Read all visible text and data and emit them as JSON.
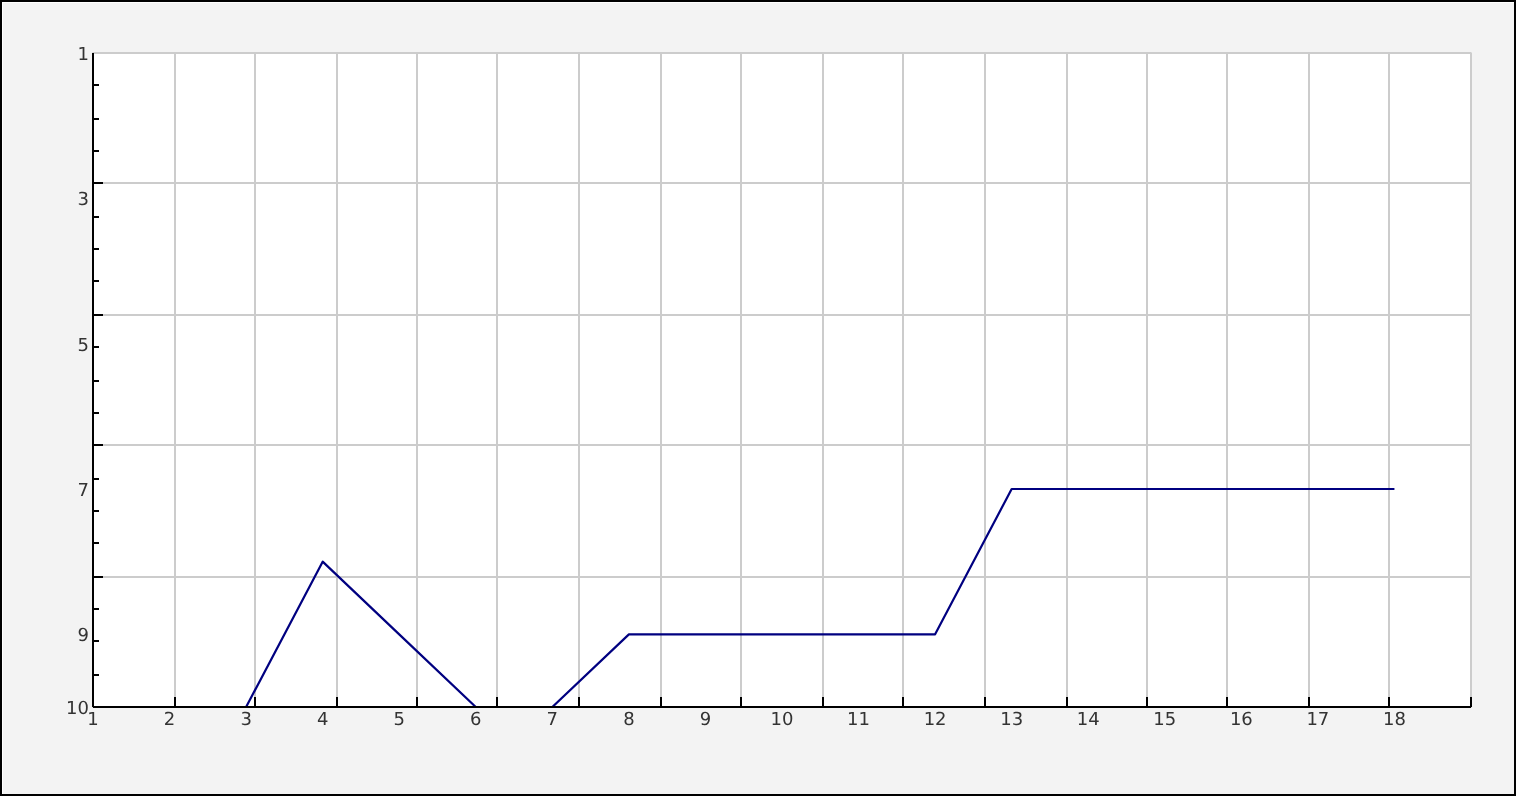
{
  "chart_data": {
    "type": "line",
    "x": [
      3,
      4,
      5,
      6,
      7,
      8,
      9,
      10,
      11,
      12,
      13,
      14,
      15,
      16,
      17,
      18
    ],
    "series": [
      {
        "color": "#000080",
        "values": [
          10,
          8,
          9,
          10,
          10,
          9,
          9,
          9,
          9,
          9,
          7,
          7,
          7,
          7,
          7,
          7
        ]
      }
    ],
    "xlim": [
      1,
      19
    ],
    "xticks": [
      1,
      2,
      3,
      4,
      5,
      6,
      7,
      8,
      9,
      10,
      11,
      12,
      13,
      14,
      15,
      16,
      17,
      18,
      {
        "value": 2.06,
        "label": null
      },
      {
        "value": 3.12,
        "label": null
      },
      {
        "value": 4.18,
        "label": null
      },
      {
        "value": 5.24,
        "label": null
      },
      {
        "value": 6.29,
        "label": null
      },
      {
        "value": 7.35,
        "label": null
      },
      {
        "value": 8.41,
        "label": null
      },
      {
        "value": 9.47,
        "label": null
      },
      {
        "value": 10.53,
        "label": null
      },
      {
        "value": 11.59,
        "label": null
      },
      {
        "value": 12.65,
        "label": null
      },
      {
        "value": 13.71,
        "label": null
      },
      {
        "value": 14.76,
        "label": null
      },
      {
        "value": 15.82,
        "label": null
      },
      {
        "value": 16.88,
        "label": null
      },
      {
        "value": 17.94,
        "label": null
      },
      {
        "value": 19,
        "label": null
      }
    ],
    "ylim": [
      10,
      1
    ],
    "yticks": [
      1,
      3,
      5,
      7,
      9,
      10,
      {
        "value": 2.8,
        "label": null
      },
      {
        "value": 4.6,
        "label": null
      },
      {
        "value": 6.4,
        "label": null
      },
      {
        "value": 8.2,
        "label": null
      }
    ],
    "grid": true
  }
}
